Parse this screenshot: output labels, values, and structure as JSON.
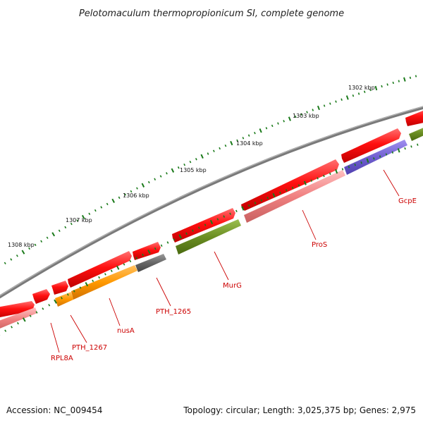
{
  "title": "Pelotomaculum thermopropionicum SI, complete genome",
  "scale_labels": [
    "1302 kbp",
    "1303 kbp",
    "1304 kbp",
    "1305 kbp",
    "1306 kbp",
    "1307 kbp",
    "1308 kbp"
  ],
  "gene_labels": {
    "rpl8a": "RPL8A",
    "pth_1267": "PTH_1267",
    "nusa": "nusA",
    "pth_1265": "PTH_1265",
    "murg": "MurG",
    "pros": "ProS",
    "gcpe": "GcpE"
  },
  "footer": {
    "accession": "Accession: NC_009454",
    "topology": "Topology: circular; Length: 3,025,375 bp; Genes: 2,975"
  },
  "colors": {
    "backbone": "#7a7a7a",
    "tick": "#1a7a1a",
    "red": "#ff1010",
    "pink": "#f08080",
    "olive": "#6b8e23",
    "orange": "#ff9900",
    "gray": "#666666",
    "purple": "#7060d0",
    "label": "#cc0000"
  }
}
